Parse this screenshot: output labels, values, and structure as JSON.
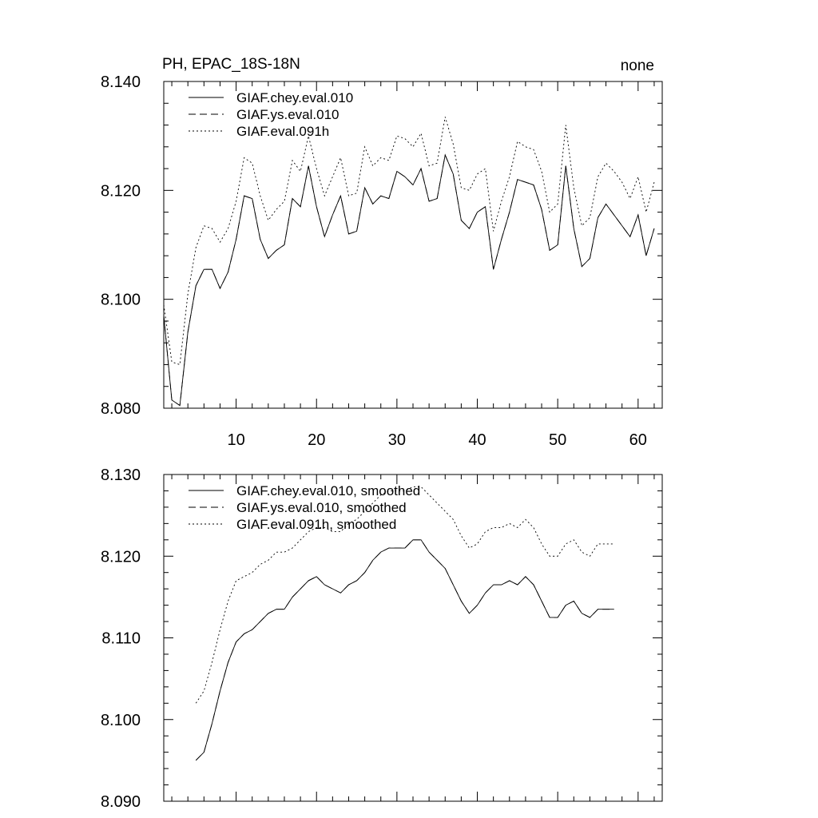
{
  "chart_data": [
    {
      "type": "line",
      "title": "PH, EPAC_18S-18N",
      "right_label": "none",
      "xlim": [
        1,
        63
      ],
      "ylim": [
        8.08,
        8.14
      ],
      "xticks": [
        10,
        20,
        30,
        40,
        50,
        60
      ],
      "xtick_labels": [
        "10",
        "20",
        "30",
        "40",
        "50",
        "60"
      ],
      "yticks": [
        8.08,
        8.1,
        8.12,
        8.14
      ],
      "ytick_labels": [
        "8.080",
        "8.100",
        "8.120",
        "8.140"
      ],
      "legend_position": "top-left",
      "x_start": 1,
      "series": [
        {
          "name": "GIAF.chey.eval.010",
          "style": "solid",
          "values": [
            8.097,
            8.0815,
            8.0805,
            8.094,
            8.1025,
            8.1055,
            8.1055,
            8.102,
            8.105,
            8.111,
            8.119,
            8.1185,
            8.111,
            8.1075,
            8.109,
            8.11,
            8.1185,
            8.117,
            8.1245,
            8.117,
            8.1115,
            8.1155,
            8.119,
            8.112,
            8.1125,
            8.1205,
            8.1175,
            8.119,
            8.1185,
            8.1235,
            8.1225,
            8.121,
            8.124,
            8.118,
            8.1185,
            8.1265,
            8.123,
            8.1145,
            8.113,
            8.116,
            8.117,
            8.1055,
            8.111,
            8.116,
            8.122,
            8.1215,
            8.121,
            8.1165,
            8.109,
            8.11,
            8.1245,
            8.113,
            8.106,
            8.1075,
            8.115,
            8.1175,
            8.1155,
            8.1135,
            8.1115,
            8.1155,
            8.108,
            8.113
          ]
        },
        {
          "name": "GIAF.ys.eval.010",
          "style": "dashed",
          "values": [
            8.097,
            8.0815,
            8.0805,
            8.094,
            8.1025,
            8.1055,
            8.1055,
            8.102,
            8.105,
            8.111,
            8.119,
            8.1185,
            8.111,
            8.1075,
            8.109,
            8.11,
            8.1185,
            8.117,
            8.1245,
            8.117,
            8.1115,
            8.1155,
            8.119,
            8.112,
            8.1125,
            8.1205,
            8.1175,
            8.119,
            8.1185,
            8.1235,
            8.1225,
            8.121,
            8.124,
            8.118,
            8.1185,
            8.1265,
            8.123,
            8.1145,
            8.113,
            8.116,
            8.117,
            8.1055,
            8.111,
            8.116,
            8.122,
            8.1215,
            8.121,
            8.1165,
            8.109,
            8.11,
            8.1245,
            8.113,
            8.106,
            8.1075,
            8.115,
            8.1175,
            8.1155,
            8.1135,
            8.1115,
            8.1155,
            8.108,
            8.113
          ]
        },
        {
          "name": "GIAF.eval.091h",
          "style": "dotted",
          "values": [
            8.099,
            8.0885,
            8.088,
            8.101,
            8.1095,
            8.1135,
            8.113,
            8.1105,
            8.113,
            8.118,
            8.126,
            8.125,
            8.119,
            8.1145,
            8.1165,
            8.118,
            8.1255,
            8.1235,
            8.13,
            8.124,
            8.119,
            8.1225,
            8.126,
            8.119,
            8.1195,
            8.128,
            8.1245,
            8.126,
            8.1255,
            8.13,
            8.1295,
            8.128,
            8.1305,
            8.1245,
            8.125,
            8.1335,
            8.1285,
            8.1205,
            8.12,
            8.123,
            8.124,
            8.1125,
            8.118,
            8.1225,
            8.129,
            8.128,
            8.1275,
            8.1235,
            8.116,
            8.1175,
            8.132,
            8.1205,
            8.1135,
            8.115,
            8.1225,
            8.125,
            8.1235,
            8.1215,
            8.1185,
            8.1225,
            8.116,
            8.1215
          ]
        }
      ]
    },
    {
      "type": "line",
      "title": "",
      "xlim": [
        1,
        63
      ],
      "ylim": [
        8.09,
        8.13
      ],
      "xticks": [
        10,
        20,
        30,
        40,
        50,
        60
      ],
      "yticks": [
        8.09,
        8.1,
        8.11,
        8.12,
        8.13
      ],
      "ytick_labels": [
        "8.090",
        "8.100",
        "8.110",
        "8.120",
        "8.130"
      ],
      "legend_position": "top-left",
      "x_start": 5,
      "series": [
        {
          "name": "GIAF.chey.eval.010, smoothed",
          "style": "solid",
          "values": [
            8.095,
            8.096,
            8.0995,
            8.1035,
            8.107,
            8.1095,
            8.1105,
            8.111,
            8.112,
            8.113,
            8.1135,
            8.1135,
            8.115,
            8.116,
            8.117,
            8.1175,
            8.1165,
            8.116,
            8.1155,
            8.1165,
            8.117,
            8.118,
            8.1195,
            8.1205,
            8.121,
            8.121,
            8.121,
            8.122,
            8.122,
            8.1205,
            8.1195,
            8.1185,
            8.1165,
            8.1145,
            8.113,
            8.114,
            8.1155,
            8.1165,
            8.1165,
            8.117,
            8.1165,
            8.1175,
            8.1165,
            8.1145,
            8.1125,
            8.1125,
            8.114,
            8.1145,
            8.113,
            8.1125,
            8.1135,
            8.1135,
            8.1135
          ]
        },
        {
          "name": "GIAF.ys.eval.010, smoothed",
          "style": "dashed",
          "values": [
            8.095,
            8.096,
            8.0995,
            8.1035,
            8.107,
            8.1095,
            8.1105,
            8.111,
            8.112,
            8.113,
            8.1135,
            8.1135,
            8.115,
            8.116,
            8.117,
            8.1175,
            8.1165,
            8.116,
            8.1155,
            8.1165,
            8.117,
            8.118,
            8.1195,
            8.1205,
            8.121,
            8.121,
            8.121,
            8.122,
            8.122,
            8.1205,
            8.1195,
            8.1185,
            8.1165,
            8.1145,
            8.113,
            8.114,
            8.1155,
            8.1165,
            8.1165,
            8.117,
            8.1165,
            8.1175,
            8.1165,
            8.1145,
            8.1125,
            8.1125,
            8.114,
            8.1145,
            8.113,
            8.1125,
            8.1135,
            8.1135,
            8.1135
          ]
        },
        {
          "name": "GIAF.eval.091h, smoothed",
          "style": "dotted",
          "values": [
            8.102,
            8.1035,
            8.107,
            8.111,
            8.1145,
            8.117,
            8.1175,
            8.118,
            8.119,
            8.1195,
            8.1205,
            8.1205,
            8.121,
            8.122,
            8.123,
            8.1235,
            8.1235,
            8.123,
            8.123,
            8.124,
            8.1245,
            8.1255,
            8.1265,
            8.1275,
            8.128,
            8.128,
            8.128,
            8.1285,
            8.1285,
            8.1275,
            8.1265,
            8.1255,
            8.1245,
            8.1225,
            8.121,
            8.1215,
            8.123,
            8.1235,
            8.1235,
            8.124,
            8.1235,
            8.1245,
            8.1235,
            8.1215,
            8.12,
            8.12,
            8.1215,
            8.122,
            8.1205,
            8.12,
            8.1215,
            8.1215,
            8.1215
          ]
        }
      ]
    }
  ]
}
